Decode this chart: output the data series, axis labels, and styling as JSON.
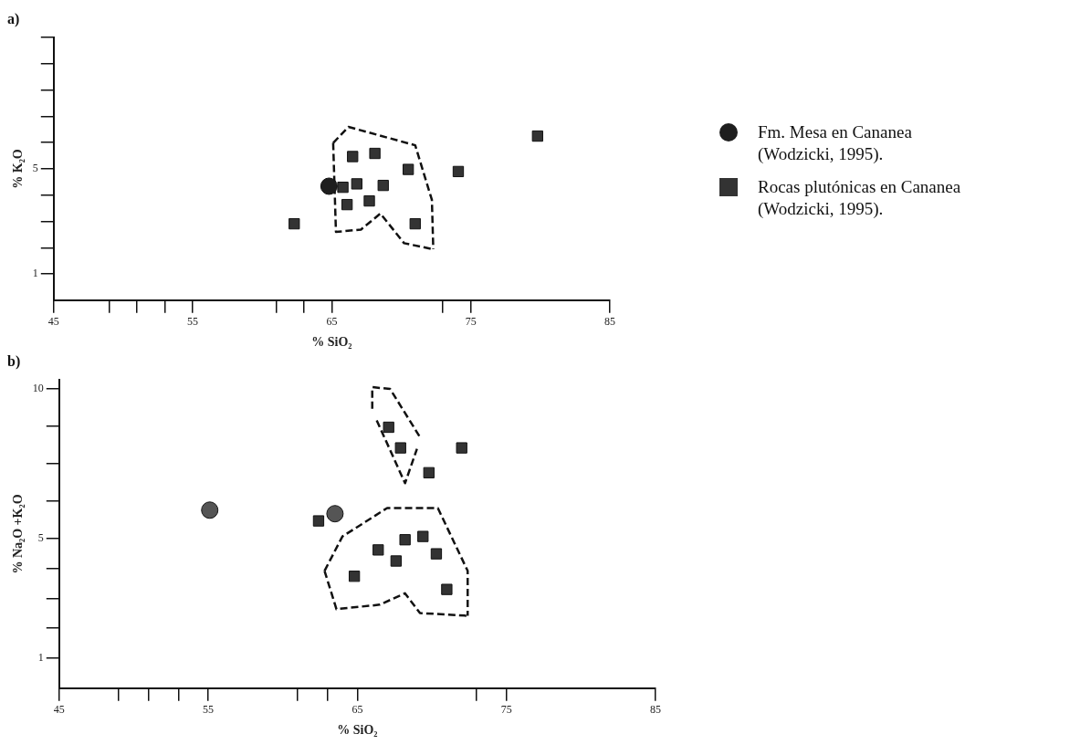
{
  "chart_data": [
    {
      "type": "scatter",
      "title": "a)",
      "xlabel": "% SiO₂",
      "ylabel": "% K₂O",
      "xlim": [
        45,
        85
      ],
      "ylim": [
        0,
        10
      ],
      "xticks": [
        45,
        {
          "value": 49,
          "label": null
        },
        {
          "value": 51,
          "label": null
        },
        {
          "value": 53,
          "label": null
        },
        55,
        {
          "value": 61,
          "label": null
        },
        {
          "value": 63,
          "label": null
        },
        65,
        {
          "value": 73,
          "label": null
        },
        75,
        85
      ],
      "yticks": [
        1,
        {
          "value": 2,
          "label": null
        },
        {
          "value": 3,
          "label": null
        },
        {
          "value": 4,
          "label": null
        },
        5,
        {
          "value": 6,
          "label": null
        },
        {
          "value": 7,
          "label": null
        },
        {
          "value": 8,
          "label": null
        },
        {
          "value": 9,
          "label": null
        },
        {
          "value": 10,
          "label": null
        }
      ],
      "grid": false,
      "legend": "right",
      "series": [
        {
          "name": "Fm. Mesa en Cananea (Wodzicki, 1995).",
          "color": "#1e1e1e",
          "marker": "circle",
          "x": [
            64.8
          ],
          "values": [
            4.34
          ]
        },
        {
          "name": "Rocas plutónicas en Cananea (Wodzicki, 1995).",
          "color": "#333333",
          "marker": "square",
          "x": [
            66.5,
            68.1,
            70.5,
            74.1,
            79.8,
            65.8,
            66.8,
            68.7,
            66.1,
            67.7,
            62.3,
            71.0
          ],
          "values": [
            5.47,
            5.59,
            4.98,
            4.9,
            6.25,
            4.3,
            4.43,
            4.37,
            3.64,
            3.78,
            2.91,
            2.91
          ]
        },
        {
          "type": "line",
          "color": "#111111",
          "marker": "none",
          "line_style": "dashed",
          "x": [
            65.1,
            66.2,
            71.0,
            72.2,
            72.3
          ],
          "values": [
            5.99,
            6.6,
            5.9,
            3.82,
            1.94
          ]
        },
        {
          "type": "line",
          "color": "#111111",
          "marker": "none",
          "line_style": "dashed",
          "x": [
            65.1,
            65.3,
            67.1,
            68.5,
            70.2,
            72.3
          ],
          "values": [
            5.99,
            2.6,
            2.69,
            3.3,
            2.17,
            1.94
          ]
        }
      ]
    },
    {
      "type": "scatter",
      "title": "b)",
      "xlabel": "% SiO₂",
      "ylabel": "% Na₂O +K₂O",
      "xlim": [
        45,
        85
      ],
      "ylim": [
        0,
        10.3
      ],
      "xticks": [
        45,
        {
          "value": 49,
          "label": null
        },
        {
          "value": 51,
          "label": null
        },
        {
          "value": 53,
          "label": null
        },
        55,
        {
          "value": 61,
          "label": null
        },
        {
          "value": 63,
          "label": null
        },
        65,
        {
          "value": 73,
          "label": null
        },
        75,
        85
      ],
      "yticks": [
        1,
        {
          "value": 2,
          "label": null
        },
        {
          "value": 3,
          "label": null
        },
        {
          "value": 4,
          "label": null
        },
        5,
        {
          "value": 6.25,
          "label": null
        },
        {
          "value": 7.5,
          "label": null
        },
        {
          "value": 8.75,
          "label": null
        },
        10
      ],
      "grid": false,
      "legend": false,
      "series": [
        {
          "color": "#555555",
          "marker": "circle",
          "x": [
            55.1,
            63.5
          ],
          "values": [
            5.95,
            5.83
          ]
        },
        {
          "color": "#333333",
          "marker": "square",
          "x": [
            62.4,
            67.1,
            67.9,
            69.8,
            72.0,
            66.4,
            68.2,
            69.4,
            70.3,
            67.6,
            64.8,
            71.0
          ],
          "values": [
            5.59,
            8.72,
            8.03,
            7.2,
            8.03,
            4.62,
            4.96,
            5.07,
            4.49,
            4.25,
            3.74,
            3.3
          ]
        },
        {
          "type": "line",
          "color": "#111111",
          "marker": "none",
          "line_style": "dashed",
          "x": [
            66.0,
            66.0,
            67.2,
            69.2
          ],
          "values": [
            9.34,
            10.06,
            10.0,
            8.39
          ]
        },
        {
          "type": "line",
          "color": "#111111",
          "marker": "none",
          "line_style": "dashed",
          "x": [
            66.3,
            68.2,
            69.0
          ],
          "values": [
            8.95,
            6.85,
            8.0
          ]
        },
        {
          "type": "line",
          "color": "#111111",
          "marker": "none",
          "line_style": "dashed",
          "x": [
            62.8,
            64.0,
            67.0,
            70.4,
            72.4,
            72.4
          ],
          "values": [
            3.92,
            5.07,
            6.02,
            6.02,
            3.92,
            2.42
          ]
        },
        {
          "type": "line",
          "color": "#111111",
          "marker": "none",
          "line_style": "dashed",
          "x": [
            62.8,
            63.6,
            66.5,
            68.2,
            69.2,
            72.4
          ],
          "values": [
            3.92,
            2.64,
            2.79,
            3.17,
            2.51,
            2.42
          ]
        }
      ]
    }
  ]
}
